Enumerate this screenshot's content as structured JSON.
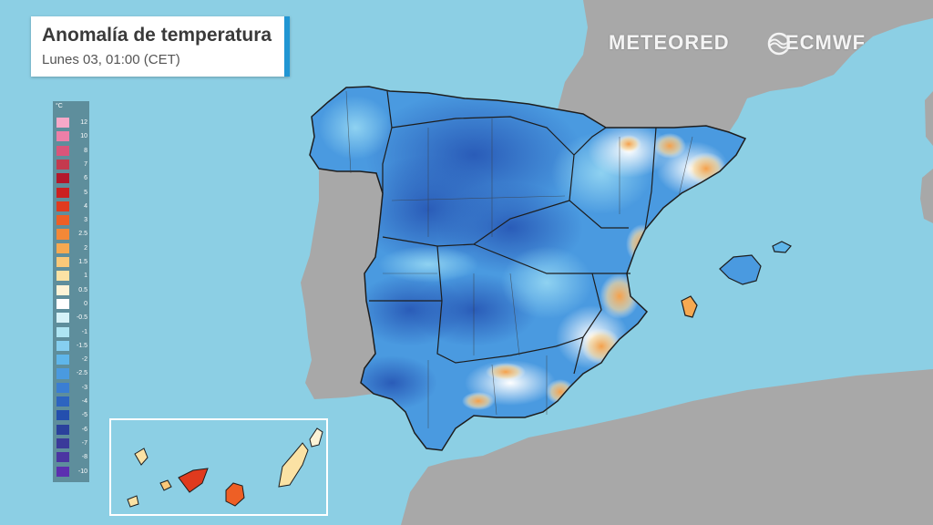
{
  "header": {
    "title": "Anomalía de temperatura",
    "subtitle": "Lunes 03, 01:00 (CET)",
    "accent_color": "#2196d3"
  },
  "brands": {
    "meteored": "METEORED",
    "ecmwf": "ECMWF",
    "ecmwf_icon": "ecmwf-logo-icon"
  },
  "legend": {
    "unit": "°C",
    "items": [
      {
        "label": "12",
        "color": "#f7a8c8"
      },
      {
        "label": "10",
        "color": "#ee7fa8"
      },
      {
        "label": "8",
        "color": "#d9557a"
      },
      {
        "label": "7",
        "color": "#c43a4e"
      },
      {
        "label": "6",
        "color": "#b3172b"
      },
      {
        "label": "5",
        "color": "#cc2020"
      },
      {
        "label": "4",
        "color": "#e03a1e"
      },
      {
        "label": "3",
        "color": "#ee5f25"
      },
      {
        "label": "2.5",
        "color": "#f38837"
      },
      {
        "label": "2",
        "color": "#f6a951"
      },
      {
        "label": "1.5",
        "color": "#f9c879"
      },
      {
        "label": "1",
        "color": "#fbe2a4"
      },
      {
        "label": "0.5",
        "color": "#fdf3d6"
      },
      {
        "label": "0",
        "color": "#ffffff"
      },
      {
        "label": "-0.5",
        "color": "#d6f2f8"
      },
      {
        "label": "-1",
        "color": "#aee5f3"
      },
      {
        "label": "-1.5",
        "color": "#86cff0"
      },
      {
        "label": "-2",
        "color": "#5fb6ea"
      },
      {
        "label": "-2.5",
        "color": "#4a9ae0"
      },
      {
        "label": "-3",
        "color": "#3a7ed3"
      },
      {
        "label": "-4",
        "color": "#2d64c0"
      },
      {
        "label": "-5",
        "color": "#244fae"
      },
      {
        "label": "-6",
        "color": "#2a419c"
      },
      {
        "label": "-7",
        "color": "#3a3a9a"
      },
      {
        "label": "-8",
        "color": "#4b35a2"
      },
      {
        "label": "-10",
        "color": "#5c2fb0"
      }
    ]
  },
  "map_colors": {
    "sea": "#8ccfe4",
    "land": "#a8a8a8",
    "deep_cold": "#2d64c0",
    "cold": "#4a9ae0",
    "mild_cold": "#86cff0",
    "neutral": "#ffffff",
    "warm": "#f6a951",
    "border": "#1d1d1d"
  }
}
